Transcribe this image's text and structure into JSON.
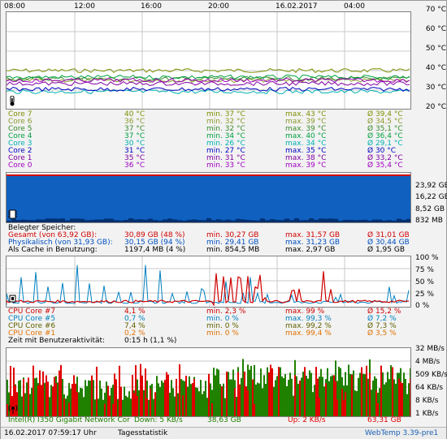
{
  "time_axis": [
    "08:00",
    "12:00",
    "16:00",
    "20:00",
    "16.02.2017",
    "04:00"
  ],
  "temp_chart": {
    "y_ticks": [
      "70 °C",
      "60 °C",
      "50 °C",
      "40 °C",
      "30 °C",
      "20 °C"
    ],
    "rows": [
      {
        "name": "Core 7",
        "cur": "40 °C",
        "min": "min. 37 °C",
        "max": "max. 43 °C",
        "avg": "Ø 39,4 °C",
        "color": "#7f8f00"
      },
      {
        "name": "Core 6",
        "cur": "36 °C",
        "min": "min. 32 °C",
        "max": "max. 39 °C",
        "avg": "Ø 34,5 °C",
        "color": "#8a9a2a"
      },
      {
        "name": "Core 5",
        "cur": "37 °C",
        "min": "min. 32 °C",
        "max": "max. 39 °C",
        "avg": "Ø 35,1 °C",
        "color": "#3a8a2a"
      },
      {
        "name": "Core 4",
        "cur": "37 °C",
        "min": "min. 34 °C",
        "max": "max. 40 °C",
        "avg": "Ø 36,4 °C",
        "color": "#00a040"
      },
      {
        "name": "Core 3",
        "cur": "30 °C",
        "min": "min. 26 °C",
        "max": "max. 34 °C",
        "avg": "Ø 29,1 °C",
        "color": "#00b0b0"
      },
      {
        "name": "Core 2",
        "cur": "31 °C",
        "min": "min. 27 °C",
        "max": "max. 35 °C",
        "avg": "Ø 30 °C",
        "color": "#0000c0"
      },
      {
        "name": "Core 1",
        "cur": "35 °C",
        "min": "min. 31 °C",
        "max": "max. 38 °C",
        "avg": "Ø 33,2 °C",
        "color": "#8000a0"
      },
      {
        "name": "Core 0",
        "cur": "36 °C",
        "min": "min. 33 °C",
        "max": "max. 39 °C",
        "avg": "Ø 35,4 °C",
        "color": "#a000c0"
      }
    ]
  },
  "memory_chart": {
    "y_ticks": [
      "23,92 GB",
      "16,22 GB",
      "8,52 GB",
      "832 MB"
    ],
    "header": "Belegter Speicher:",
    "rows": [
      {
        "name": "Gesamt (von 63,92 GB):",
        "cur": "30,89 GB (48 %)",
        "min": "min. 30,27 GB",
        "max": "max. 31,57 GB",
        "avg": "Ø 31,01 GB",
        "color": "#d00000"
      },
      {
        "name": "Physikalisch (von 31,93 GB):",
        "cur": "30,15 GB (94 %)",
        "min": "min. 29,41 GB",
        "max": "max. 31,23 GB",
        "avg": "Ø 30,44 GB",
        "color": "#0050c0"
      },
      {
        "name": "Als Cache in Benutzung:",
        "cur": "1197,4 MB (4 %)",
        "min": "min. 854,5 MB",
        "max": "max. 2,97 GB",
        "avg": "Ø 1,95 GB",
        "color": "#000000"
      }
    ]
  },
  "cpu_chart": {
    "y_ticks": [
      "100 %",
      "75 %",
      "50 %",
      "25 %",
      "0 %"
    ],
    "rows": [
      {
        "name": "CPU Core #7",
        "cur": "4,1 %",
        "min": "min. 2,3 %",
        "max": "max. 99 %",
        "avg": "Ø 15,2 %",
        "color": "#d00000"
      },
      {
        "name": "CPU Core #5",
        "cur": "0,7 %",
        "min": "min. 0 %",
        "max": "max. 99,3 %",
        "avg": "Ø 7,2 %",
        "color": "#0080c0"
      },
      {
        "name": "CPU Core #6",
        "cur": "7,4 %",
        "min": "min. 0 %",
        "max": "max. 99,2 %",
        "avg": "Ø 7,3 %",
        "color": "#606000"
      },
      {
        "name": "CPU Core #1",
        "cur": "0,2 %",
        "min": "min. 0 %",
        "max": "max. 99,4 %",
        "avg": "Ø 3,5 %",
        "color": "#e07000"
      }
    ],
    "activity_label": "Zeit mit Benutzeraktivität:",
    "activity_value": "0:15 h (1,1 %)"
  },
  "network_chart": {
    "y_ticks": [
      "32 MB/s",
      "4 MB/s",
      "509 KB/s",
      "64 KB/s",
      "8 KB/s",
      "1 KB/s"
    ],
    "adapter": "Intel(R) I350 Gigabit Network Cor",
    "down": "Down: 5 KB/s",
    "down_total": "38,63 GB",
    "up": "Up: 2 KB/s",
    "up_total": "63,31 GB",
    "down_color": "#208000",
    "up_color": "#e00000"
  },
  "status": {
    "datetime": "16.02.2017 07:59:17 Uhr",
    "stats": "Tagesstatistik",
    "version": "WebTemp 3.39-pre1"
  },
  "colors": {
    "grid": "#c8c8c8",
    "memory_fill": "#1060c0",
    "memory_top": "#d00000",
    "cpu_red": "#d00000",
    "cpu_blue": "#0080c0"
  }
}
